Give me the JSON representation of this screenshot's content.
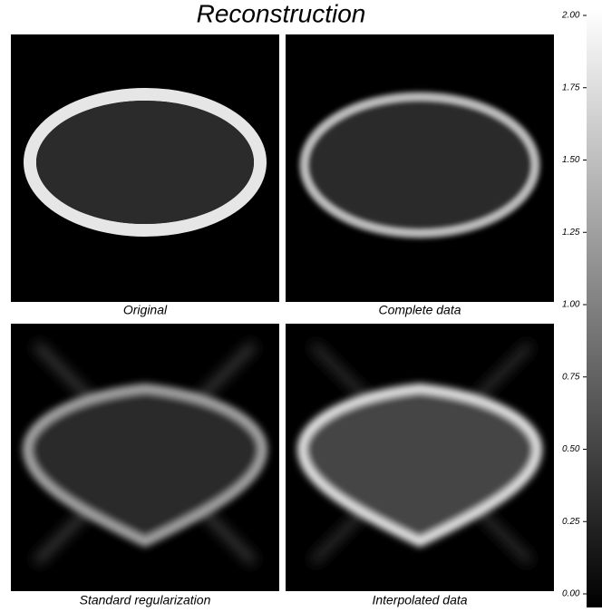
{
  "chart_data": {
    "type": "image",
    "title": "Reconstruction",
    "panels": [
      {
        "label": "Original"
      },
      {
        "label": "Complete data"
      },
      {
        "label": "Standard regularization"
      },
      {
        "label": "Interpolated data"
      }
    ],
    "colorbar": {
      "ylim": [
        0,
        2
      ],
      "yticks": [
        {
          "value": 0,
          "label": "0.00"
        },
        {
          "value": 0.25,
          "label": "0.25"
        },
        {
          "value": 0.5,
          "label": "0.50"
        },
        {
          "value": 0.75,
          "label": "0.75"
        },
        {
          "value": 1,
          "label": "1.00"
        },
        {
          "value": 1.25,
          "label": "1.25"
        },
        {
          "value": 1.5,
          "label": "1.50"
        },
        {
          "value": 1.75,
          "label": "1.75"
        },
        {
          "value": 2,
          "label": "2.00"
        }
      ]
    }
  }
}
